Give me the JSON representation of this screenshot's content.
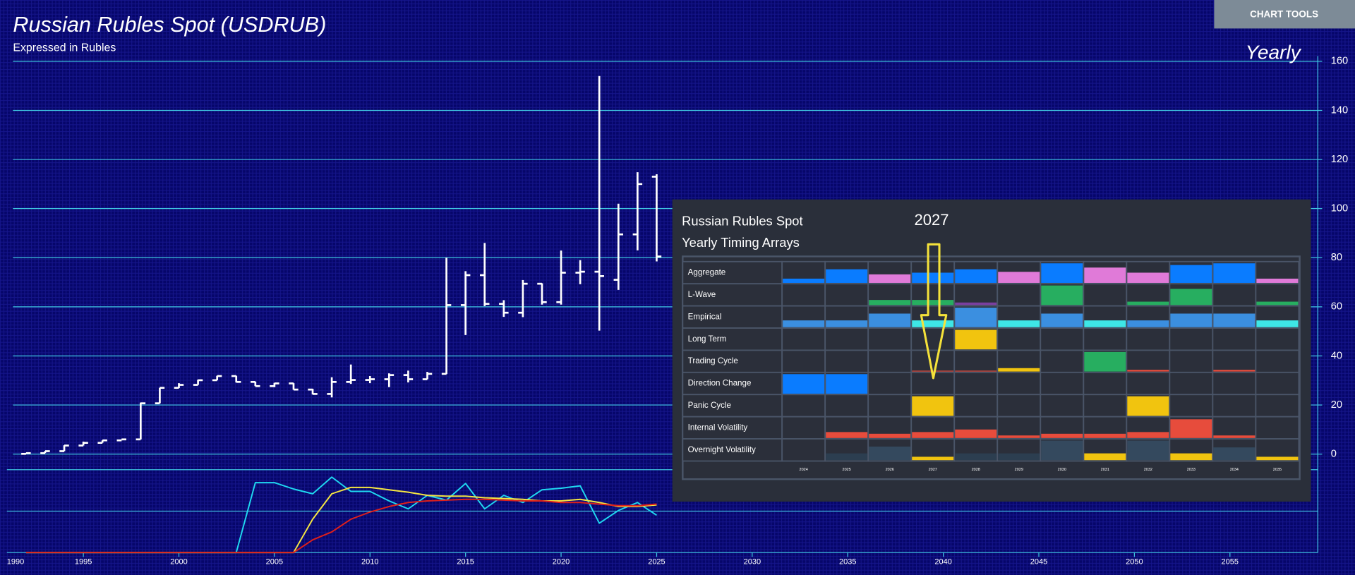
{
  "toolbar": {
    "button": "CHART TOOLS"
  },
  "chart_data": [
    {
      "type": "ohlc",
      "title": "Russian Rubles Spot (USDRUB)",
      "subtitle": "Expressed in Rubles",
      "annotation": "Yearly",
      "color": "#ffffff",
      "grid": true,
      "grid_color": "#3fc6e0",
      "x": [
        1992,
        1993,
        1994,
        1995,
        1996,
        1997,
        1998,
        1999,
        2000,
        2001,
        2002,
        2003,
        2004,
        2005,
        2006,
        2007,
        2008,
        2009,
        2010,
        2011,
        2012,
        2013,
        2014,
        2015,
        2016,
        2017,
        2018,
        2019,
        2020,
        2021,
        2022,
        2023,
        2024,
        2025
      ],
      "open": [
        0.1,
        0.4,
        1.2,
        3.5,
        4.6,
        5.6,
        6.0,
        20.7,
        27,
        28.2,
        30.1,
        31.8,
        29.4,
        27.7,
        28.8,
        26.3,
        24.5,
        29.4,
        30.2,
        30.5,
        32.2,
        30.5,
        32.7,
        60.7,
        72.9,
        61.2,
        57.6,
        69.4,
        61.9,
        73.9,
        74.3,
        71,
        89.5,
        113
      ],
      "high": [
        0.5,
        1.3,
        3.6,
        5.1,
        5.6,
        6.0,
        21,
        27,
        28.9,
        30.3,
        31.9,
        31.9,
        29.5,
        29.0,
        28.9,
        26.6,
        31.3,
        36.5,
        31.8,
        32.9,
        34.0,
        33.5,
        80,
        74.5,
        86,
        62.7,
        70.9,
        69.6,
        82.9,
        79,
        154,
        102,
        114.8,
        114
      ],
      "low": [
        0.1,
        0.4,
        1.2,
        3.5,
        4.6,
        5.6,
        6.0,
        20.7,
        26.9,
        28.2,
        30.1,
        29.2,
        27.7,
        27.3,
        26.2,
        24.3,
        23.1,
        28.6,
        28.9,
        27.3,
        29.2,
        30.5,
        32.6,
        48.5,
        60.3,
        55.9,
        55.8,
        60.9,
        60.9,
        69.2,
        50.3,
        66.9,
        83,
        78.5
      ],
      "close": [
        0.4,
        1.2,
        3.5,
        4.6,
        5.6,
        6.0,
        20.7,
        27,
        28.2,
        30.1,
        31.8,
        29.4,
        27.7,
        28.8,
        26.3,
        24.5,
        29.4,
        30.2,
        30.5,
        32.2,
        30.5,
        32.7,
        60.7,
        72.9,
        61.2,
        57.6,
        69.4,
        61.9,
        73.9,
        74.3,
        72.5,
        89.5,
        110,
        80.5
      ],
      "xlim": [
        1991,
        2059.6
      ],
      "xticks": [
        1990,
        1995,
        2000,
        2005,
        2010,
        2015,
        2020,
        2025,
        2030,
        2035,
        2040,
        2045,
        2050,
        2055
      ],
      "ylim": [
        -7,
        162
      ],
      "yticks": [
        0,
        20,
        40,
        60,
        80,
        100,
        120,
        140,
        160
      ]
    },
    {
      "type": "line",
      "xlim": [
        1991,
        2059.6
      ],
      "ylim": [
        0,
        100
      ],
      "x": [
        1992,
        1993,
        1994,
        1995,
        1996,
        1997,
        1998,
        1999,
        2000,
        2001,
        2002,
        2003,
        2004,
        2005,
        2006,
        2007,
        2008,
        2009,
        2010,
        2011,
        2012,
        2013,
        2014,
        2015,
        2016,
        2017,
        2018,
        2019,
        2020,
        2021,
        2022,
        2023,
        2024,
        2025
      ],
      "series": [
        {
          "color": "#1fd8f0",
          "values": [
            0,
            0,
            0,
            0,
            0,
            0,
            0,
            0,
            0,
            0,
            0,
            0,
            88,
            88,
            80,
            74,
            95,
            77,
            77,
            65,
            55,
            72,
            66,
            87,
            55,
            72,
            63,
            79,
            81,
            84,
            37,
            53,
            63,
            47
          ]
        },
        {
          "color": "#f5e642",
          "values": [
            0,
            0,
            0,
            0,
            0,
            0,
            0,
            0,
            0,
            0,
            0,
            0,
            0,
            0,
            0,
            42,
            74,
            82,
            82,
            79,
            76,
            72,
            71,
            71,
            69,
            68,
            67,
            65,
            65,
            67,
            63,
            58,
            58,
            60
          ]
        },
        {
          "color": "#e0201a",
          "values": [
            0,
            0,
            0,
            0,
            0,
            0,
            0,
            0,
            0,
            0,
            0,
            0,
            0,
            0,
            0,
            16,
            26,
            42,
            51,
            58,
            63,
            65,
            66,
            67,
            67,
            66,
            65,
            65,
            63,
            63,
            61,
            59,
            59,
            61
          ]
        }
      ]
    },
    {
      "type": "timing-array",
      "title": "Russian Rubles Spot",
      "subtitle": "Yearly Timing Arrays",
      "annotation": "2027",
      "annotation_color": "#f5e23a",
      "ylim": [
        0,
        24
      ],
      "categories": [
        "2024",
        "2025",
        "2026",
        "2027",
        "2028",
        "2029",
        "2030",
        "2031",
        "2032",
        "2033",
        "2034",
        "2035"
      ],
      "series": [
        {
          "name": "Aggregate",
          "values": [
            5,
            16,
            10,
            12,
            16,
            13,
            23,
            18,
            12,
            21,
            23,
            5
          ],
          "colors": [
            "#0a7cff",
            "#0a7cff",
            "#e07ad8",
            "#0a7cff",
            "#0a7cff",
            "#e07ad8",
            "#0a7cff",
            "#e07ad8",
            "#e07ad8",
            "#0a7cff",
            "#0a7cff",
            "#e07ad8"
          ]
        },
        {
          "name": "L-Wave",
          "values": [
            null,
            null,
            6,
            6,
            3,
            null,
            23,
            null,
            4,
            19,
            null,
            4
          ],
          "colors": [
            null,
            null,
            "#27ae60",
            "#27ae60",
            "#7a3fa0",
            null,
            "#27ae60",
            null,
            "#27ae60",
            "#27ae60",
            null,
            "#27ae60"
          ]
        },
        {
          "name": "Empirical",
          "values": [
            8,
            8,
            16,
            8,
            23,
            8,
            16,
            8,
            8,
            16,
            16,
            8
          ],
          "colors": [
            "#3b8fe0",
            "#3b8fe0",
            "#3b8fe0",
            "#3ee6e6",
            "#3b8fe0",
            "#3ee6e6",
            "#3b8fe0",
            "#3ee6e6",
            "#3b8fe0",
            "#3b8fe0",
            "#3b8fe0",
            "#3ee6e6"
          ]
        },
        {
          "name": "Long Term",
          "values": [
            null,
            null,
            null,
            null,
            23,
            null,
            null,
            null,
            null,
            null,
            null,
            null
          ],
          "colors": [
            null,
            null,
            null,
            null,
            "#f1c40f",
            null,
            null,
            null,
            null,
            null,
            null,
            null
          ]
        },
        {
          "name": "Trading Cycle",
          "values": [
            null,
            null,
            null,
            1,
            1,
            4,
            null,
            23,
            2,
            null,
            2,
            null
          ],
          "colors": [
            null,
            null,
            null,
            "#e74c3c",
            "#e74c3c",
            "#f1c40f",
            null,
            "#27ae60",
            "#e74c3c",
            null,
            "#e74c3c",
            null
          ]
        },
        {
          "name": "Direction Change",
          "values": [
            23,
            23,
            null,
            null,
            null,
            null,
            null,
            null,
            null,
            null,
            null,
            null
          ],
          "colors": [
            "#0a7cff",
            "#0a7cff",
            null,
            null,
            null,
            null,
            null,
            null,
            null,
            null,
            null,
            null
          ]
        },
        {
          "name": "Panic Cycle",
          "values": [
            null,
            null,
            null,
            23,
            null,
            null,
            null,
            null,
            23,
            null,
            null,
            null
          ],
          "colors": [
            null,
            null,
            null,
            "#f1c40f",
            null,
            null,
            null,
            null,
            "#f1c40f",
            null,
            null,
            null
          ]
        },
        {
          "name": "Internal Volatility",
          "values": [
            null,
            7,
            5,
            7,
            10,
            3,
            5,
            5,
            7,
            22,
            3,
            null
          ],
          "colors": [
            null,
            "#e74c3c",
            "#e74c3c",
            "#e74c3c",
            "#e74c3c",
            "#e74c3c",
            "#e74c3c",
            "#e74c3c",
            "#e74c3c",
            "#e74c3c",
            "#e74c3c",
            null
          ]
        },
        {
          "name": "Overnight Volatility",
          "values": [
            null,
            8,
            16,
            4,
            8,
            8,
            23,
            8,
            23,
            8,
            15,
            4
          ],
          "colors": [
            null,
            "#2c3e50",
            "#34495e",
            "#f1c40f",
            "#2c3e50",
            "#2c3e50",
            "#34495e",
            "#f1c40f",
            "#34495e",
            "#f1c40f",
            "#34495e",
            "#f1c40f"
          ]
        }
      ]
    }
  ]
}
